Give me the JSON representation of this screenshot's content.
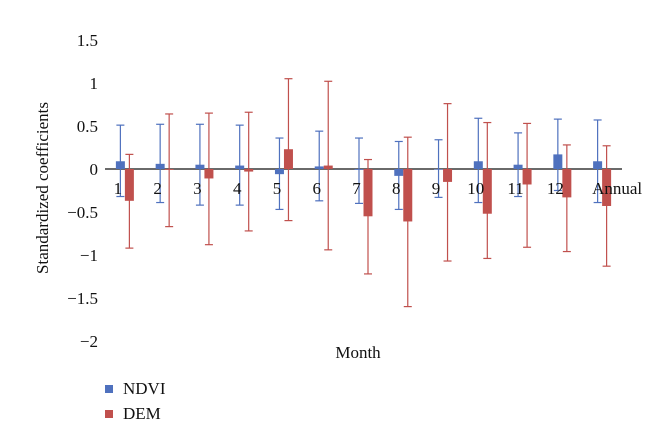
{
  "chart_data": {
    "type": "bar",
    "title": "",
    "xlabel": "Month",
    "ylabel": "Standardized coefficients",
    "ylim": [
      -2,
      1.5
    ],
    "yticks": [
      1.5,
      1,
      0.5,
      0,
      -0.5,
      -1,
      -1.5,
      -2
    ],
    "ytick_labels": [
      "1.5",
      "1",
      "0.5",
      "0",
      "−0.5",
      "−1",
      "−1.5",
      "−2"
    ],
    "categories": [
      "1",
      "2",
      "3",
      "4",
      "5",
      "6",
      "7",
      "8",
      "9",
      "10",
      "11",
      "12",
      "Annual"
    ],
    "grid": false,
    "legend_position": "bottom-left",
    "series": [
      {
        "name": "NDVI",
        "color": "#4f71be",
        "values": [
          0.09,
          0.06,
          0.05,
          0.04,
          -0.06,
          0.03,
          -0.01,
          -0.08,
          0.0,
          0.09,
          0.05,
          0.17,
          0.09
        ],
        "err_upper": [
          0.51,
          0.52,
          0.52,
          0.51,
          0.36,
          0.44,
          0.36,
          0.32,
          0.34,
          0.59,
          0.42,
          0.58,
          0.57
        ],
        "err_lower": [
          -0.32,
          -0.39,
          -0.42,
          -0.42,
          -0.47,
          -0.37,
          -0.4,
          -0.47,
          -0.33,
          -0.39,
          -0.32,
          -0.25,
          -0.39
        ]
      },
      {
        "name": "DEM",
        "color": "#c0504d",
        "values": [
          -0.37,
          -0.01,
          -0.11,
          -0.03,
          0.23,
          0.04,
          -0.55,
          -0.61,
          -0.15,
          -0.52,
          -0.18,
          -0.33,
          -0.43
        ],
        "err_upper": [
          0.17,
          0.64,
          0.65,
          0.66,
          1.05,
          1.02,
          0.11,
          0.37,
          0.76,
          0.54,
          0.53,
          0.28,
          0.27
        ],
        "err_lower": [
          -0.92,
          -0.67,
          -0.88,
          -0.72,
          -0.6,
          -0.94,
          -1.22,
          -1.6,
          -1.07,
          -1.04,
          -0.91,
          -0.96,
          -1.13
        ]
      }
    ]
  }
}
